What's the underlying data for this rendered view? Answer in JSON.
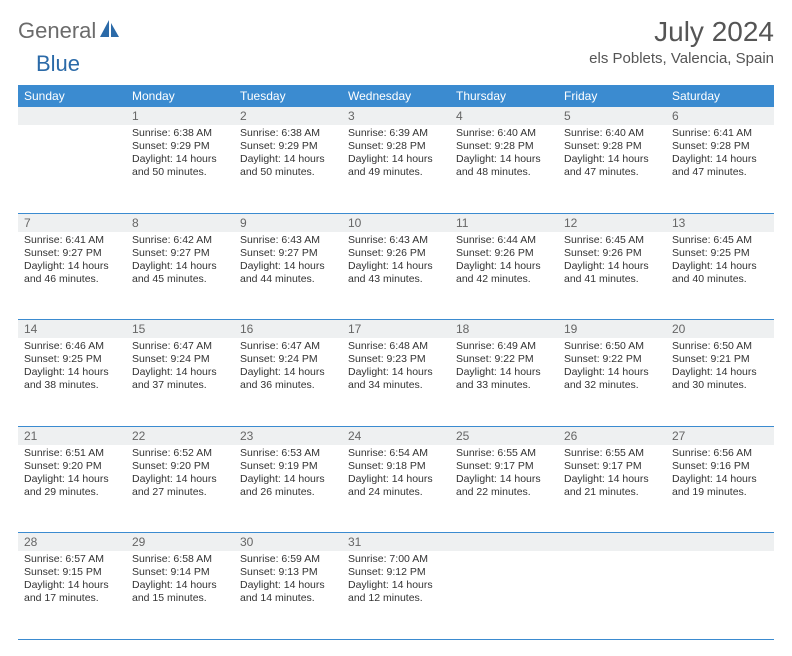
{
  "logo": {
    "part1": "General",
    "part2": "Blue"
  },
  "title": "July 2024",
  "location": "els Poblets, Valencia, Spain",
  "colors": {
    "header_bg": "#3b8bd0",
    "header_text": "#ffffff",
    "daynum_bg": "#eef0f1",
    "daynum_text": "#666666",
    "cell_text": "#333333",
    "rule": "#3b8bd0",
    "title_text": "#555555",
    "logo_gray": "#6b6b6b",
    "logo_blue": "#2b6aa8"
  },
  "day_headers": [
    "Sunday",
    "Monday",
    "Tuesday",
    "Wednesday",
    "Thursday",
    "Friday",
    "Saturday"
  ],
  "weeks": [
    [
      {
        "n": "",
        "sunrise": "",
        "sunset": "",
        "daylight": ""
      },
      {
        "n": "1",
        "sunrise": "Sunrise: 6:38 AM",
        "sunset": "Sunset: 9:29 PM",
        "daylight": "Daylight: 14 hours and 50 minutes."
      },
      {
        "n": "2",
        "sunrise": "Sunrise: 6:38 AM",
        "sunset": "Sunset: 9:29 PM",
        "daylight": "Daylight: 14 hours and 50 minutes."
      },
      {
        "n": "3",
        "sunrise": "Sunrise: 6:39 AM",
        "sunset": "Sunset: 9:28 PM",
        "daylight": "Daylight: 14 hours and 49 minutes."
      },
      {
        "n": "4",
        "sunrise": "Sunrise: 6:40 AM",
        "sunset": "Sunset: 9:28 PM",
        "daylight": "Daylight: 14 hours and 48 minutes."
      },
      {
        "n": "5",
        "sunrise": "Sunrise: 6:40 AM",
        "sunset": "Sunset: 9:28 PM",
        "daylight": "Daylight: 14 hours and 47 minutes."
      },
      {
        "n": "6",
        "sunrise": "Sunrise: 6:41 AM",
        "sunset": "Sunset: 9:28 PM",
        "daylight": "Daylight: 14 hours and 47 minutes."
      }
    ],
    [
      {
        "n": "7",
        "sunrise": "Sunrise: 6:41 AM",
        "sunset": "Sunset: 9:27 PM",
        "daylight": "Daylight: 14 hours and 46 minutes."
      },
      {
        "n": "8",
        "sunrise": "Sunrise: 6:42 AM",
        "sunset": "Sunset: 9:27 PM",
        "daylight": "Daylight: 14 hours and 45 minutes."
      },
      {
        "n": "9",
        "sunrise": "Sunrise: 6:43 AM",
        "sunset": "Sunset: 9:27 PM",
        "daylight": "Daylight: 14 hours and 44 minutes."
      },
      {
        "n": "10",
        "sunrise": "Sunrise: 6:43 AM",
        "sunset": "Sunset: 9:26 PM",
        "daylight": "Daylight: 14 hours and 43 minutes."
      },
      {
        "n": "11",
        "sunrise": "Sunrise: 6:44 AM",
        "sunset": "Sunset: 9:26 PM",
        "daylight": "Daylight: 14 hours and 42 minutes."
      },
      {
        "n": "12",
        "sunrise": "Sunrise: 6:45 AM",
        "sunset": "Sunset: 9:26 PM",
        "daylight": "Daylight: 14 hours and 41 minutes."
      },
      {
        "n": "13",
        "sunrise": "Sunrise: 6:45 AM",
        "sunset": "Sunset: 9:25 PM",
        "daylight": "Daylight: 14 hours and 40 minutes."
      }
    ],
    [
      {
        "n": "14",
        "sunrise": "Sunrise: 6:46 AM",
        "sunset": "Sunset: 9:25 PM",
        "daylight": "Daylight: 14 hours and 38 minutes."
      },
      {
        "n": "15",
        "sunrise": "Sunrise: 6:47 AM",
        "sunset": "Sunset: 9:24 PM",
        "daylight": "Daylight: 14 hours and 37 minutes."
      },
      {
        "n": "16",
        "sunrise": "Sunrise: 6:47 AM",
        "sunset": "Sunset: 9:24 PM",
        "daylight": "Daylight: 14 hours and 36 minutes."
      },
      {
        "n": "17",
        "sunrise": "Sunrise: 6:48 AM",
        "sunset": "Sunset: 9:23 PM",
        "daylight": "Daylight: 14 hours and 34 minutes."
      },
      {
        "n": "18",
        "sunrise": "Sunrise: 6:49 AM",
        "sunset": "Sunset: 9:22 PM",
        "daylight": "Daylight: 14 hours and 33 minutes."
      },
      {
        "n": "19",
        "sunrise": "Sunrise: 6:50 AM",
        "sunset": "Sunset: 9:22 PM",
        "daylight": "Daylight: 14 hours and 32 minutes."
      },
      {
        "n": "20",
        "sunrise": "Sunrise: 6:50 AM",
        "sunset": "Sunset: 9:21 PM",
        "daylight": "Daylight: 14 hours and 30 minutes."
      }
    ],
    [
      {
        "n": "21",
        "sunrise": "Sunrise: 6:51 AM",
        "sunset": "Sunset: 9:20 PM",
        "daylight": "Daylight: 14 hours and 29 minutes."
      },
      {
        "n": "22",
        "sunrise": "Sunrise: 6:52 AM",
        "sunset": "Sunset: 9:20 PM",
        "daylight": "Daylight: 14 hours and 27 minutes."
      },
      {
        "n": "23",
        "sunrise": "Sunrise: 6:53 AM",
        "sunset": "Sunset: 9:19 PM",
        "daylight": "Daylight: 14 hours and 26 minutes."
      },
      {
        "n": "24",
        "sunrise": "Sunrise: 6:54 AM",
        "sunset": "Sunset: 9:18 PM",
        "daylight": "Daylight: 14 hours and 24 minutes."
      },
      {
        "n": "25",
        "sunrise": "Sunrise: 6:55 AM",
        "sunset": "Sunset: 9:17 PM",
        "daylight": "Daylight: 14 hours and 22 minutes."
      },
      {
        "n": "26",
        "sunrise": "Sunrise: 6:55 AM",
        "sunset": "Sunset: 9:17 PM",
        "daylight": "Daylight: 14 hours and 21 minutes."
      },
      {
        "n": "27",
        "sunrise": "Sunrise: 6:56 AM",
        "sunset": "Sunset: 9:16 PM",
        "daylight": "Daylight: 14 hours and 19 minutes."
      }
    ],
    [
      {
        "n": "28",
        "sunrise": "Sunrise: 6:57 AM",
        "sunset": "Sunset: 9:15 PM",
        "daylight": "Daylight: 14 hours and 17 minutes."
      },
      {
        "n": "29",
        "sunrise": "Sunrise: 6:58 AM",
        "sunset": "Sunset: 9:14 PM",
        "daylight": "Daylight: 14 hours and 15 minutes."
      },
      {
        "n": "30",
        "sunrise": "Sunrise: 6:59 AM",
        "sunset": "Sunset: 9:13 PM",
        "daylight": "Daylight: 14 hours and 14 minutes."
      },
      {
        "n": "31",
        "sunrise": "Sunrise: 7:00 AM",
        "sunset": "Sunset: 9:12 PM",
        "daylight": "Daylight: 14 hours and 12 minutes."
      },
      {
        "n": "",
        "sunrise": "",
        "sunset": "",
        "daylight": ""
      },
      {
        "n": "",
        "sunrise": "",
        "sunset": "",
        "daylight": ""
      },
      {
        "n": "",
        "sunrise": "",
        "sunset": "",
        "daylight": ""
      }
    ]
  ]
}
